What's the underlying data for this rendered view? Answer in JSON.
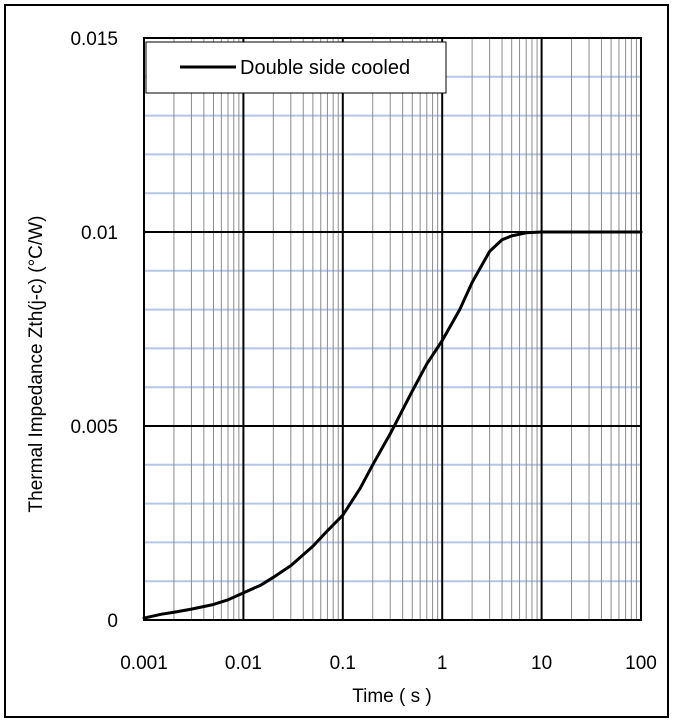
{
  "chart_data": {
    "type": "line",
    "title": "",
    "xlabel": "Time ( s )",
    "ylabel": "Thermal Impedance  Zth(j-c)  (°C/W)",
    "x_scale": "log",
    "y_scale": "linear",
    "xlim": [
      0.001,
      100
    ],
    "ylim": [
      0,
      0.015
    ],
    "x_ticks": [
      "0.001",
      "0.01",
      "0.1",
      "1",
      "10",
      "100"
    ],
    "y_ticks": [
      "0",
      "0.005",
      "0.01",
      "0.015"
    ],
    "grid": true,
    "legend": "top-left",
    "series": [
      {
        "name": "Double side cooled",
        "color": "#000000",
        "x": [
          0.001,
          0.0015,
          0.002,
          0.003,
          0.005,
          0.007,
          0.01,
          0.015,
          0.02,
          0.03,
          0.05,
          0.07,
          0.1,
          0.15,
          0.2,
          0.3,
          0.5,
          0.7,
          1,
          1.5,
          2,
          3,
          4,
          5,
          7,
          10,
          20,
          50,
          100
        ],
        "y": [
          5e-05,
          0.00015,
          0.0002,
          0.00028,
          0.0004,
          0.00052,
          0.0007,
          0.0009,
          0.0011,
          0.0014,
          0.0019,
          0.0023,
          0.0027,
          0.0034,
          0.004,
          0.0048,
          0.0059,
          0.0066,
          0.0072,
          0.008,
          0.0087,
          0.0095,
          0.0098,
          0.0099,
          0.00998,
          0.01,
          0.01,
          0.01,
          0.01
        ]
      }
    ]
  }
}
